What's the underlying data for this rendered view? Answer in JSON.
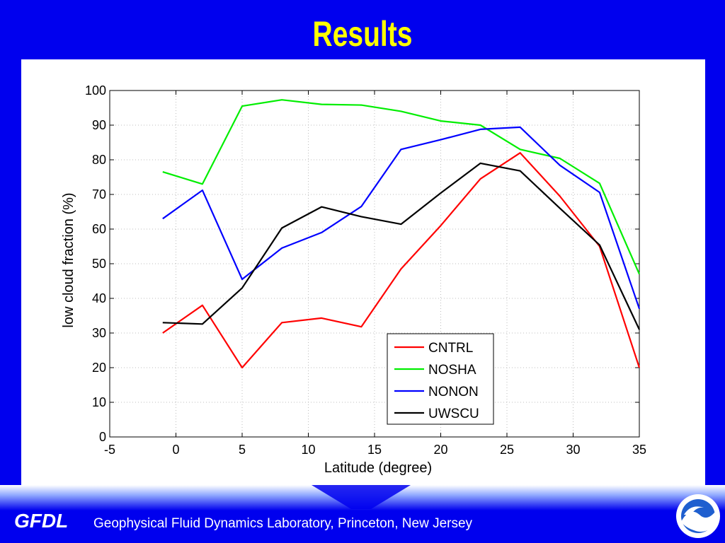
{
  "slide": {
    "title": "Results",
    "footer_brand": "GFDL",
    "footer_text": "Geophysical Fluid Dynamics Laboratory, Princeton, New Jersey",
    "logo_icon": "noaa-logo",
    "colors": {
      "background": "#0000ee",
      "title": "#ffff00",
      "footer_text": "#ffffff"
    }
  },
  "chart_data": {
    "type": "line",
    "title": "",
    "xlabel": "Latitude (degree)",
    "ylabel": "low cloud fraction (%)",
    "xlim": [
      -5,
      35
    ],
    "ylim": [
      0,
      100
    ],
    "xticks": [
      -5,
      0,
      5,
      10,
      15,
      20,
      25,
      30,
      35
    ],
    "yticks": [
      0,
      10,
      20,
      30,
      40,
      50,
      60,
      70,
      80,
      90,
      100
    ],
    "grid": true,
    "legend_position": "bottom-right",
    "x": [
      -1,
      2,
      5,
      8,
      11,
      14,
      17,
      20,
      23,
      26,
      29,
      32,
      35
    ],
    "series": [
      {
        "name": "CNTRL",
        "color": "#ff0000",
        "values": [
          30,
          38,
          20,
          33,
          34.3,
          31.8,
          48.5,
          61,
          74.5,
          82,
          69.5,
          55,
          20
        ]
      },
      {
        "name": "NOSHA",
        "color": "#00ee00",
        "values": [
          76.5,
          73,
          95.5,
          97.3,
          96,
          95.8,
          94,
          91.2,
          90,
          83,
          80.4,
          73.2,
          47
        ]
      },
      {
        "name": "NONON",
        "color": "#0000ff",
        "values": [
          63,
          71.2,
          45.5,
          54.5,
          59,
          66.5,
          83,
          85.8,
          88.8,
          89.4,
          78.4,
          70.6,
          37
        ]
      },
      {
        "name": "UWSCU",
        "color": "#000000",
        "values": [
          33,
          32.6,
          43,
          60.3,
          66.4,
          63.6,
          61.4,
          70.4,
          79,
          76.8,
          66,
          55.4,
          31
        ]
      }
    ]
  }
}
